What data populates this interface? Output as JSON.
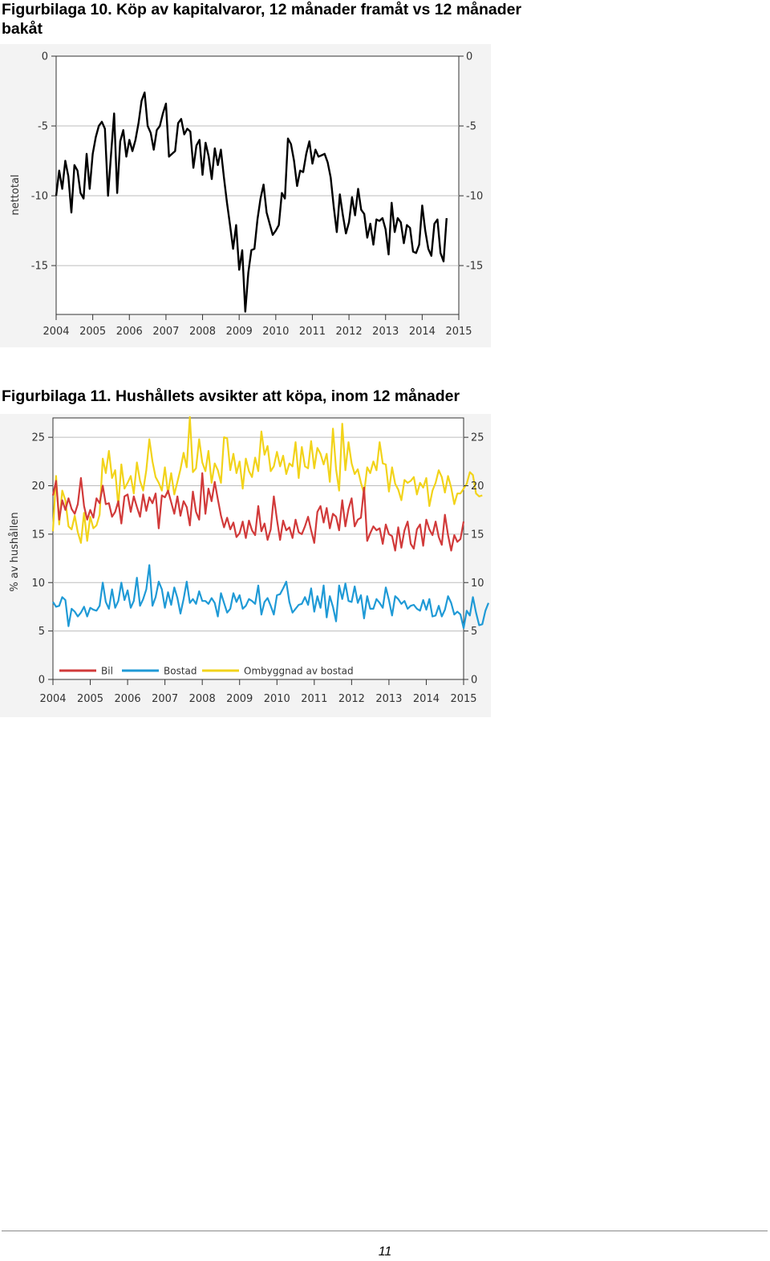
{
  "figure10": {
    "title": "Figurbilaga 10. Köp av kapitalvaror, 12 månader framåt vs 12 månader bakåt"
  },
  "figure11": {
    "title": "Figurbilaga 11. Hushållets avsikter att köpa, inom 12 månader"
  },
  "page_number": "11",
  "chart_data": [
    {
      "type": "line",
      "title": "",
      "ylabel": "nettotal",
      "xlabel": "",
      "xlim": [
        2004,
        2015
      ],
      "ylim": [
        -18.5,
        0
      ],
      "x_ticks": [
        "2004",
        "2005",
        "2006",
        "2007",
        "2008",
        "2009",
        "2010",
        "2011",
        "2012",
        "2013",
        "2014",
        "2015"
      ],
      "y_ticks": [
        0,
        -5,
        -10,
        -15
      ],
      "grid": true,
      "legend": "none",
      "x_start": 2004.0,
      "x_step": 0.0833333,
      "series": [
        {
          "color": "#000000",
          "values": [
            -10,
            -8.2,
            -9.5,
            -7.5,
            -8.6,
            -11.2,
            -7.8,
            -8.2,
            -9.8,
            -10.2,
            -7,
            -9.5,
            -7,
            -5.8,
            -5,
            -4.7,
            -5.2,
            -10,
            -7,
            -4.1,
            -9.8,
            -6.1,
            -5.3,
            -7.2,
            -6,
            -6.8,
            -6,
            -4.8,
            -3.2,
            -2.6,
            -5,
            -5.5,
            -6.7,
            -5.3,
            -5,
            -4.1,
            -3.4,
            -7.2,
            -7,
            -6.8,
            -4.8,
            -4.5,
            -5.6,
            -5.2,
            -5.4,
            -8,
            -6.4,
            -6,
            -8.5,
            -6.2,
            -7.2,
            -8.8,
            -6.6,
            -7.8,
            -6.7,
            -8.7,
            -10.5,
            -12.1,
            -13.8,
            -12.1,
            -15.3,
            -13.9,
            -18.3,
            -15.5,
            -13.9,
            -13.8,
            -11.7,
            -10.2,
            -9.2,
            -11.2,
            -12,
            -12.8,
            -12.5,
            -12.1,
            -9.8,
            -10.2,
            -5.9,
            -6.3,
            -7.5,
            -9.3,
            -8.2,
            -8.3,
            -7,
            -6.1,
            -7.7,
            -6.7,
            -7.2,
            -7.1,
            -7,
            -7.6,
            -8.7,
            -10.8,
            -12.6,
            -9.9,
            -11.4,
            -12.7,
            -11.9,
            -10.1,
            -11.4,
            -9.5,
            -11,
            -11.3,
            -13,
            -12,
            -13.5,
            -11.7,
            -11.8,
            -11.6,
            -12.4,
            -14.2,
            -10.5,
            -12.6,
            -11.6,
            -11.9,
            -13.4,
            -12.1,
            -12.3,
            -14,
            -14.1,
            -13.5,
            -10.7,
            -12.5,
            -13.8,
            -14.3,
            -12,
            -11.7,
            -14.1,
            -14.7,
            -11.6
          ]
        }
      ]
    },
    {
      "type": "line",
      "title": "",
      "ylabel": "% av hushållen",
      "xlabel": "",
      "xlim": [
        2004,
        2015
      ],
      "ylim": [
        0,
        27
      ],
      "x_ticks": [
        "2004",
        "2005",
        "2006",
        "2007",
        "2008",
        "2009",
        "2010",
        "2011",
        "2012",
        "2013",
        "2014",
        "2015"
      ],
      "y_ticks": [
        0,
        5,
        10,
        15,
        20,
        25
      ],
      "grid": true,
      "legend": "bottom-left",
      "x_start": 2004.0,
      "x_step": 0.0833333,
      "series": [
        {
          "name": "Bil",
          "color": "#d13a3a",
          "values": [
            19,
            20.5,
            16.5,
            18.5,
            17.5,
            18.7,
            17.6,
            17.1,
            18.1,
            20.8,
            17.9,
            16.5,
            17.5,
            16.7,
            18.7,
            18.2,
            20,
            18.1,
            18.2,
            16.8,
            17.3,
            18.4,
            16.1,
            18.9,
            19.1,
            17.3,
            18.9,
            17.8,
            16.8,
            19.1,
            17.4,
            18.8,
            18.2,
            19.2,
            15.6,
            19,
            18.8,
            19.5,
            18.3,
            17.1,
            18.9,
            16.9,
            18.4,
            17.8,
            15.9,
            19.4,
            17.3,
            16.5,
            21.3,
            17.1,
            19.7,
            18.4,
            20.4,
            18.6,
            16.9,
            15.7,
            16.7,
            15.5,
            16.2,
            14.7,
            15.1,
            16.3,
            14.6,
            16.4,
            15.4,
            14.9,
            17.9,
            15.3,
            16.1,
            14.4,
            15.5,
            18.9,
            16.5,
            14.4,
            16.4,
            15.4,
            15.7,
            14.6,
            16.5,
            15.2,
            15,
            15.8,
            16.8,
            15.4,
            14.1,
            17.3,
            17.9,
            16.2,
            17.7,
            15.6,
            17.1,
            16.8,
            15.4,
            18.5,
            15.8,
            17.6,
            18.7,
            15.8,
            16.5,
            16.7,
            19.8,
            14.3,
            15.1,
            15.8,
            15.4,
            15.6,
            14,
            16,
            15,
            14.8,
            13.3,
            15.7,
            13.6,
            15.4,
            16.3,
            14,
            13.5,
            15.5,
            16,
            13.8,
            16.5,
            15.5,
            14.9,
            16.3,
            14.7,
            13.9,
            17,
            14.9,
            13.3,
            14.9,
            14.2,
            14.5,
            16.3
          ]
        },
        {
          "name": "Bostad",
          "color": "#1f9ad6",
          "values": [
            8,
            7.5,
            7.6,
            8.5,
            8.2,
            5.5,
            7.3,
            7,
            6.5,
            6.9,
            7.5,
            6.5,
            7.4,
            7.2,
            7.1,
            7.6,
            10,
            8,
            7.3,
            9.3,
            7.4,
            8.1,
            10,
            8.2,
            9.2,
            7.4,
            8.1,
            10.5,
            7.6,
            8.3,
            9.3,
            11.8,
            7.6,
            8.5,
            10.1,
            9.3,
            7.4,
            9,
            7.7,
            9.5,
            8.4,
            6.8,
            8.3,
            10.1,
            7.9,
            8.3,
            7.8,
            9.1,
            8.1,
            8.1,
            7.8,
            8.4,
            7.9,
            6.5,
            8.9,
            7.9,
            6.9,
            7.3,
            8.9,
            8,
            8.7,
            7.3,
            7.6,
            8.3,
            8.1,
            7.8,
            9.7,
            6.7,
            8,
            8.4,
            7.6,
            6.7,
            8.7,
            8.8,
            9.4,
            10.1,
            8,
            6.9,
            7.3,
            7.7,
            7.8,
            8.5,
            7.7,
            9.4,
            7,
            8.6,
            7.4,
            9.7,
            6.4,
            8.6,
            7.5,
            6,
            9.7,
            8.3,
            9.9,
            8.1,
            8,
            9.6,
            7.9,
            8.7,
            6.3,
            8.6,
            7.3,
            7.3,
            8.3,
            7.9,
            7.4,
            9.5,
            8.2,
            6.6,
            8.6,
            8.3,
            7.8,
            8.1,
            7.3,
            7.6,
            7.7,
            7.3,
            7.1,
            8.2,
            7.2,
            8.3,
            6.5,
            6.6,
            7.6,
            6.5,
            7.2,
            8.6,
            7.9,
            6.7,
            7,
            6.7,
            5.3,
            7.1,
            6.6,
            8.5,
            6.9,
            5.6,
            5.7,
            7.1,
            7.9
          ]
        },
        {
          "name": "Ombyggnad av bostad",
          "color": "#f2d31a",
          "values": [
            15.3,
            21,
            16,
            19.5,
            18.5,
            15.8,
            15.5,
            16.9,
            15.2,
            14.1,
            17.2,
            14.3,
            16.8,
            15.6,
            15.9,
            17,
            22.8,
            21.3,
            23.6,
            20.8,
            21.6,
            17.9,
            22.2,
            19.7,
            20.3,
            21,
            19.2,
            22.4,
            20.5,
            19.5,
            21.6,
            24.8,
            22.5,
            20.9,
            20.3,
            19.5,
            21.9,
            19.2,
            21.3,
            19.1,
            20.4,
            21.7,
            23.4,
            21.9,
            27.1,
            21.4,
            21.8,
            24.8,
            22.4,
            21.5,
            23.6,
            20.3,
            22.3,
            21.6,
            20.3,
            25,
            24.9,
            21.6,
            23.3,
            21.3,
            22.5,
            19.7,
            22.8,
            21.5,
            20.9,
            22.9,
            21.5,
            25.6,
            23.2,
            24.1,
            21.5,
            22,
            23.5,
            22,
            23.1,
            21.2,
            22.3,
            22,
            24.5,
            20.8,
            24,
            22,
            21.8,
            24.6,
            21.8,
            23.9,
            23.3,
            22.2,
            23.3,
            20.4,
            25.9,
            21.7,
            19.5,
            26.4,
            21.6,
            24.5,
            22.3,
            21.2,
            21.7,
            20.3,
            19.2,
            21.9,
            21.3,
            22.5,
            21.6,
            24.5,
            22.3,
            22.2,
            19.4,
            21.9,
            20.2,
            19.6,
            18.5,
            20.6,
            20.3,
            20.5,
            20.9,
            19.1,
            20.3,
            19.8,
            20.8,
            17.9,
            19.5,
            20.3,
            21.6,
            20.9,
            19.3,
            21,
            19.8,
            18.1,
            19.2,
            19.2,
            19.7,
            20.2,
            21.4,
            21.1,
            19.2,
            18.9,
            19
          ]
        }
      ]
    }
  ]
}
